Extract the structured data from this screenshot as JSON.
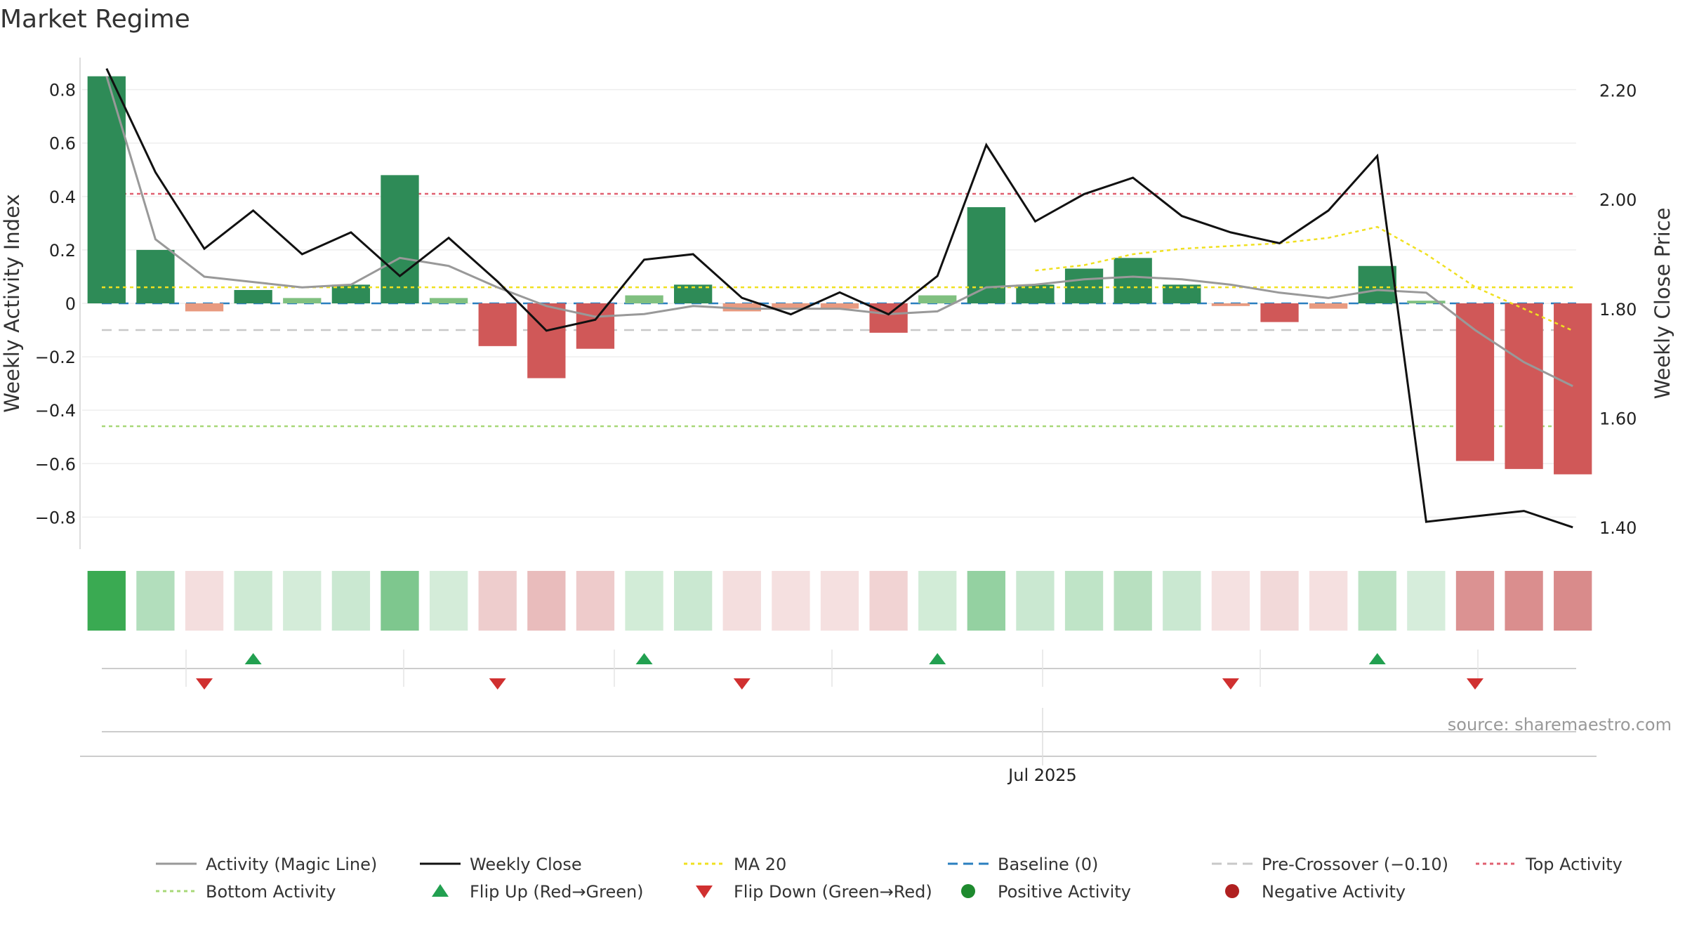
{
  "chart_data": {
    "type": "bar",
    "title": "Market Regime",
    "ylabel": "Weekly Activity Index",
    "ylabel_right": "Weekly Close Price",
    "xtick_label": "Jul 2025",
    "source": "source: sharemaestro.com",
    "ylim": [
      -0.92,
      0.92
    ],
    "ylim_right": [
      1.36,
      2.26
    ],
    "yticks": [
      0.8,
      0.6,
      0.4,
      0.2,
      0,
      -0.2,
      -0.4,
      -0.6,
      -0.8
    ],
    "ytick_labels": [
      "0.8",
      "0.6",
      "0.4",
      "0.2",
      "0",
      "−0.2",
      "−0.4",
      "−0.6",
      "−0.8"
    ],
    "yticks_right": [
      2.2,
      2.0,
      1.8,
      1.6,
      1.4
    ],
    "ytick_labels_right": [
      "2.20",
      "2.00",
      "1.80",
      "1.60",
      "1.40"
    ],
    "thresholds": {
      "top": 0.41,
      "bottom": -0.46,
      "pre_crossover": -0.1,
      "baseline": 0,
      "ma20_level": 0.06
    },
    "series": [
      {
        "name": "Weekly Activity",
        "values": [
          0.85,
          0.2,
          -0.03,
          0.05,
          0.02,
          0.07,
          0.48,
          0.02,
          -0.16,
          -0.28,
          -0.17,
          0.03,
          0.07,
          -0.03,
          -0.02,
          -0.02,
          -0.11,
          0.03,
          0.36,
          0.07,
          0.13,
          0.17,
          0.07,
          -0.01,
          -0.07,
          -0.02,
          0.14,
          0.01,
          -0.59,
          -0.62,
          -0.64
        ]
      },
      {
        "name": "Activity (Magic Line)",
        "values": [
          0.85,
          0.24,
          0.1,
          0.08,
          0.06,
          0.07,
          0.17,
          0.14,
          0.06,
          -0.01,
          -0.05,
          -0.04,
          -0.01,
          -0.02,
          -0.02,
          -0.02,
          -0.04,
          -0.03,
          0.06,
          0.07,
          0.09,
          0.1,
          0.09,
          0.07,
          0.04,
          0.02,
          0.05,
          0.04,
          -0.1,
          -0.22,
          -0.31
        ]
      },
      {
        "name": "Weekly Close",
        "values": [
          2.24,
          2.05,
          1.91,
          1.98,
          1.9,
          1.94,
          1.86,
          1.93,
          1.85,
          1.76,
          1.78,
          1.89,
          1.9,
          1.82,
          1.79,
          1.83,
          1.79,
          1.86,
          2.1,
          1.96,
          2.01,
          2.04,
          1.97,
          1.94,
          1.92,
          1.98,
          2.08,
          1.41,
          1.42,
          1.43,
          1.4
        ]
      },
      {
        "name": "MA 20",
        "values": [
          null,
          null,
          null,
          null,
          null,
          null,
          null,
          null,
          null,
          null,
          null,
          null,
          null,
          null,
          null,
          null,
          null,
          null,
          null,
          1.87,
          1.88,
          1.9,
          1.91,
          1.915,
          1.92,
          1.93,
          1.95,
          1.9,
          1.84,
          1.8,
          1.76
        ]
      }
    ],
    "heatmap_strip": [
      0.85,
      0.2,
      -0.03,
      0.05,
      0.02,
      0.07,
      0.48,
      0.02,
      -0.16,
      -0.28,
      -0.17,
      0.03,
      0.07,
      -0.03,
      -0.02,
      -0.02,
      -0.11,
      0.03,
      0.36,
      0.07,
      0.13,
      0.17,
      0.07,
      -0.01,
      -0.07,
      -0.02,
      0.14,
      0.01,
      -0.59,
      -0.62,
      -0.64
    ],
    "flip_up_weeks": [
      3,
      11,
      17,
      26
    ],
    "flip_down_weeks": [
      2,
      8,
      13,
      23,
      28
    ],
    "colors": {
      "strong_green": "#2e8b57",
      "light_green": "#80c080",
      "strong_red": "#d05858",
      "light_red": "#e89a80",
      "magic_line": "#999999",
      "close_line": "#111111",
      "ma20": "#f0e020",
      "baseline": "#2a7fbf",
      "pre_crossover": "#c8c8c8",
      "top": "#e06070",
      "bottom": "#a8d878",
      "flip_up": "#22a050",
      "flip_down": "#d03030",
      "positive": "#1e8a2e",
      "negative": "#b02020"
    },
    "legend": [
      {
        "label": "Activity (Magic Line)",
        "kind": "line",
        "color": "#999999",
        "dash": "",
        "width": 3
      },
      {
        "label": "Weekly Close",
        "kind": "line",
        "color": "#111111",
        "dash": "",
        "width": 3
      },
      {
        "label": "MA 20",
        "kind": "line",
        "color": "#f0e020",
        "dash": "5,5",
        "width": 3
      },
      {
        "label": "Baseline (0)",
        "kind": "line",
        "color": "#2a7fbf",
        "dash": "14,8",
        "width": 3
      },
      {
        "label": "Pre-Crossover (−0.10)",
        "kind": "line",
        "color": "#c8c8c8",
        "dash": "14,8",
        "width": 3
      },
      {
        "label": "Top Activity",
        "kind": "line",
        "color": "#e06070",
        "dash": "5,5",
        "width": 3
      },
      {
        "label": "Bottom Activity",
        "kind": "line",
        "color": "#a8d878",
        "dash": "5,5",
        "width": 3
      },
      {
        "label": "Flip Up (Red→Green)",
        "kind": "up",
        "color": "#22a050"
      },
      {
        "label": "Flip Down (Green→Red)",
        "kind": "down",
        "color": "#d03030"
      },
      {
        "label": "Positive Activity",
        "kind": "dot",
        "color": "#1e8a2e"
      },
      {
        "label": "Negative Activity",
        "kind": "dot",
        "color": "#b02020"
      }
    ]
  }
}
